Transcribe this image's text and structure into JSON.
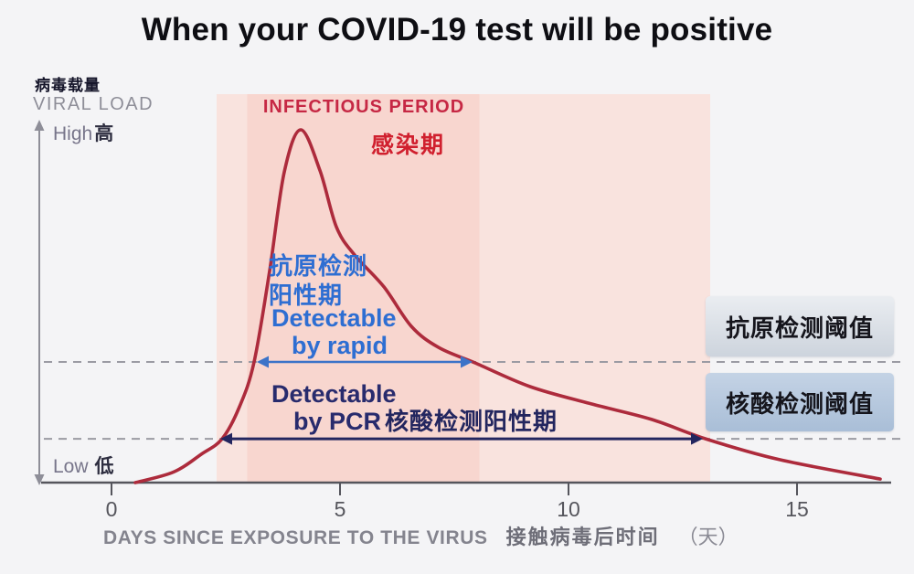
{
  "title": "When your COVID-19 test will be positive",
  "y_axis": {
    "label_cn": "病毒载量",
    "label_en": "VIRAL LOAD",
    "top_en": "High",
    "top_cn": "高",
    "bottom_en": "Low",
    "bottom_cn": "低"
  },
  "x_axis": {
    "label_en": "DAYS SINCE EXPOSURE TO THE VIRUS",
    "label_cn": "接触病毒后时间",
    "label_unit": "（天）"
  },
  "infectious_period": {
    "label_en": "INFECTIOUS PERIOD",
    "label_cn": "感染期"
  },
  "rapid": {
    "cn_line1": "抗原检测",
    "cn_line2": "阳性期",
    "en_line1": "Detectable",
    "en_line2": "by rapid",
    "threshold_box_label": "抗原检测阈值"
  },
  "pcr": {
    "en_line1": "Detectable",
    "en_line2": "by PCR",
    "cn_label": "核酸检测阳性期",
    "threshold_box_label": "核酸检测阈值"
  },
  "colors": {
    "background": "#f4f4f6",
    "curve": "#ad2b3c",
    "infectious_band": "#f8d6cf",
    "extended_band": "#f9e3de",
    "dashed_line": "#9b9ba3",
    "rapid_blue": "#2e6ed2",
    "pcr_navy": "#23265f",
    "red_label": "#c62844",
    "axis_gray": "#8e8e98"
  },
  "chart_data": {
    "type": "line",
    "title": "When your COVID-19 test will be positive",
    "xlabel": "DAYS SINCE EXPOSURE TO THE VIRUS 接触病毒后时间（天）",
    "ylabel": "VIRAL LOAD 病毒载量 (qualitative: Low 低 → High 高)",
    "x_ticks": [
      0,
      5,
      10,
      15
    ],
    "xlim": [
      -1.55,
      17.1
    ],
    "ylim": [
      0,
      1
    ],
    "grid": false,
    "series": [
      {
        "name": "viral load",
        "color": "#ad2b3c",
        "points_day_vs_relative_load": [
          [
            0.52,
            0.0
          ],
          [
            1.36,
            0.03
          ],
          [
            1.96,
            0.08
          ],
          [
            2.42,
            0.124
          ],
          [
            2.8,
            0.215
          ],
          [
            3.12,
            0.342
          ],
          [
            3.46,
            0.6
          ],
          [
            3.78,
            0.88
          ],
          [
            4.14,
            1.0
          ],
          [
            4.56,
            0.885
          ],
          [
            4.92,
            0.725
          ],
          [
            5.32,
            0.645
          ],
          [
            5.96,
            0.555
          ],
          [
            6.56,
            0.443
          ],
          [
            7.16,
            0.383
          ],
          [
            7.96,
            0.339
          ],
          [
            9.16,
            0.272
          ],
          [
            10.5,
            0.223
          ],
          [
            11.82,
            0.179
          ],
          [
            13.0,
            0.124
          ],
          [
            14.62,
            0.065
          ],
          [
            16.82,
            0.01
          ]
        ]
      }
    ],
    "thresholds": [
      {
        "name": "rapid antigen detection threshold 抗原检测阈值",
        "relative_load": 0.342,
        "line_color": "#9b9ba3",
        "arrow": {
          "from_day": 3.18,
          "to_day": 7.9,
          "color": "#3c73c8",
          "label": "Detectable by rapid 抗原检测阳性期"
        }
      },
      {
        "name": "PCR detection threshold 核酸检测阈值",
        "relative_load": 0.124,
        "line_color": "#9b9ba3",
        "arrow": {
          "from_day": 2.38,
          "to_day": 12.94,
          "color": "#23265f",
          "label": "Detectable by PCR 核酸检测阳性期"
        }
      }
    ],
    "regions": [
      {
        "name": "extended shaded band",
        "from_day": 2.3,
        "to_day": 13.1,
        "fill": "#f9e3de"
      },
      {
        "name": "INFECTIOUS PERIOD 感染期",
        "from_day": 2.97,
        "to_day": 8.05,
        "fill": "#f8d6cf"
      }
    ]
  }
}
